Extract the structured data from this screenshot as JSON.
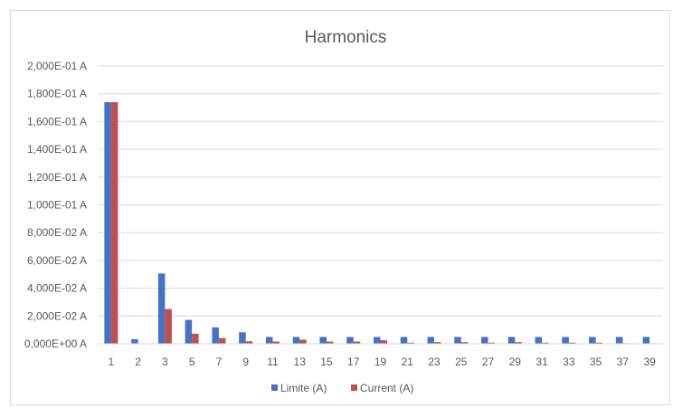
{
  "chart_data": {
    "type": "bar",
    "title": "Harmonics",
    "xlabel": "",
    "ylabel": "",
    "ylim": [
      0,
      0.2
    ],
    "y_tick_values": [
      0,
      0.02,
      0.04,
      0.06,
      0.08,
      0.1,
      0.12,
      0.14,
      0.16,
      0.18,
      0.2
    ],
    "y_tick_labels": [
      "0,000E+00 A",
      "2,000E-02 A",
      "4,000E-02 A",
      "6,000E-02 A",
      "8,000E-02 A",
      "1,000E-01 A",
      "1,200E-01 A",
      "1,400E-01 A",
      "1,600E-01 A",
      "1,800E-01 A",
      "2,000E-01 A"
    ],
    "grid": true,
    "legend_position": "bottom",
    "categories": [
      "1",
      "2",
      "3",
      "5",
      "7",
      "9",
      "11",
      "13",
      "15",
      "17",
      "19",
      "21",
      "23",
      "25",
      "27",
      "29",
      "31",
      "33",
      "35",
      "37",
      "39"
    ],
    "series": [
      {
        "name": "Limite (A)",
        "color": "#4472c4",
        "values": [
          0.174,
          0.0033,
          0.0506,
          0.0172,
          0.0118,
          0.0083,
          0.0049,
          0.0049,
          0.0049,
          0.0049,
          0.0049,
          0.0049,
          0.0049,
          0.0049,
          0.0049,
          0.0049,
          0.0049,
          0.0049,
          0.0049,
          0.0049,
          0.0049
        ]
      },
      {
        "name": "Current (A)",
        "color": "#c0504d",
        "values": [
          0.174,
          0.0,
          0.025,
          0.0072,
          0.0041,
          0.0018,
          0.0016,
          0.0029,
          0.0016,
          0.0016,
          0.0025,
          0.0008,
          0.0012,
          0.0012,
          0.0008,
          0.0012,
          0.0008,
          0.0008,
          0.0008,
          0.0004,
          0.0004
        ]
      }
    ]
  }
}
